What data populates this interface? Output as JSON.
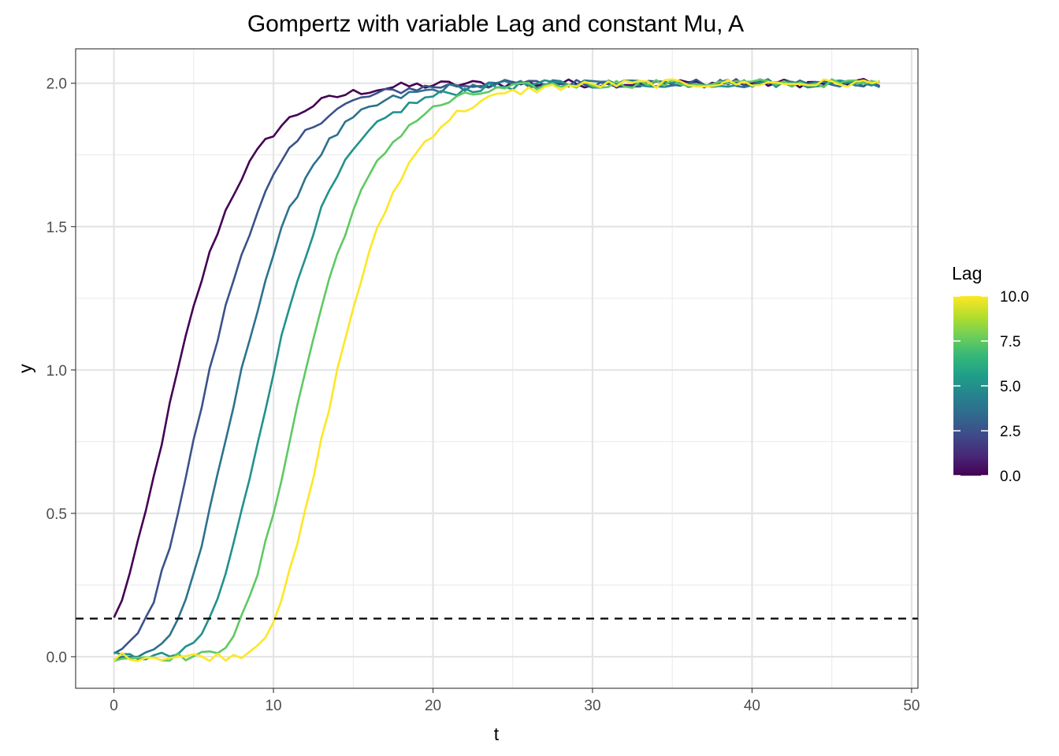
{
  "chart_data": {
    "type": "line",
    "title": "Gompertz with variable Lag and constant Mu, A",
    "xlabel": "t",
    "ylabel": "y",
    "xlim": [
      -2.4,
      50.4
    ],
    "ylim": [
      -0.11,
      2.12
    ],
    "x_ticks": [
      0,
      10,
      20,
      30,
      40,
      50
    ],
    "x_tick_labels": [
      "0",
      "10",
      "20",
      "30",
      "40",
      "50"
    ],
    "y_ticks": [
      0,
      0.5,
      1,
      1.5,
      2
    ],
    "y_tick_labels": [
      "0.0",
      "0.5",
      "1.0",
      "1.5",
      "2.0"
    ],
    "grid": true,
    "x_step": 0.5,
    "x_start": 0,
    "x_end": 48,
    "A": 2,
    "Mu": 0.25,
    "threshold": {
      "y": 0.133,
      "style": "dashed"
    },
    "legend": {
      "title": "Lag",
      "type": "colorbar",
      "range": [
        0,
        10
      ],
      "ticks": [
        0,
        2.5,
        5,
        7.5,
        10
      ],
      "tick_labels": [
        "0.0",
        "2.5",
        "5.0",
        "7.5",
        "10.0"
      ],
      "placement": "right",
      "colors": [
        "#440154",
        "#482878",
        "#3e4a89",
        "#31688e",
        "#26828e",
        "#1f9e89",
        "#35b779",
        "#6ece58",
        "#b5de2b",
        "#fde725"
      ]
    },
    "series": [
      {
        "lag": 0,
        "color": "#440154"
      },
      {
        "lag": 2,
        "color": "#3b528b"
      },
      {
        "lag": 4,
        "color": "#2c728e"
      },
      {
        "lag": 6,
        "color": "#21918c"
      },
      {
        "lag": 8,
        "color": "#5ec962"
      },
      {
        "lag": 10,
        "color": "#fde725"
      }
    ]
  }
}
